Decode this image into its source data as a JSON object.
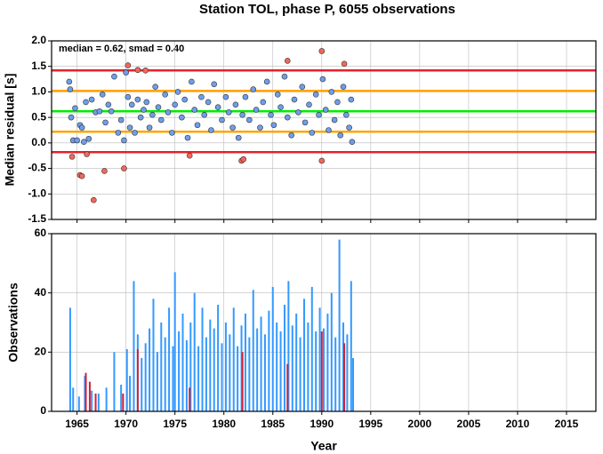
{
  "chart_data": [
    {
      "type": "scatter",
      "title": "Station TOL, phase P, 6055 observations",
      "ylabel": "Median residual [s]",
      "annotation": "median = 0.62, smad = 0.40",
      "xlim": [
        1962.4,
        2018
      ],
      "xticks": [
        1965,
        1970,
        1975,
        1980,
        1985,
        1990,
        1995,
        2000,
        2005,
        2010,
        2015
      ],
      "show_xtick_labels": false,
      "ylim": [
        -1.5,
        2.0
      ],
      "yticks": [
        {
          "value": 2,
          "label": "2.0"
        },
        1.5,
        {
          "value": 1,
          "label": "1.0"
        },
        0.5,
        {
          "value": 0,
          "label": "0.0"
        },
        -0.5,
        {
          "value": -1,
          "label": "-1.0"
        },
        -1.5
      ],
      "grid": true,
      "hlines": [
        {
          "value": 1.42,
          "color": "#e8202a"
        },
        {
          "value": 1.02,
          "color": "#ffa500"
        },
        {
          "value": 0.62,
          "color": "#00ee00"
        },
        {
          "value": 0.22,
          "color": "#ffa500"
        },
        {
          "value": -0.18,
          "color": "#e8202a"
        }
      ],
      "series": [
        {
          "color": "#6d9eeb",
          "x": [
            1964.2,
            1964.3,
            1964.4,
            1964.6,
            1964.8,
            1965.0,
            1965.3,
            1965.5,
            1965.7,
            1965.9,
            1966.2,
            1966.5,
            1966.9,
            1967.3,
            1967.6,
            1967.9,
            1968.2,
            1968.5,
            1968.8,
            1969.2,
            1969.5,
            1969.8,
            1970.0,
            1970.2,
            1970.4,
            1970.6,
            1970.9,
            1971.2,
            1971.5,
            1971.8,
            1972.1,
            1972.4,
            1972.7,
            1973.0,
            1973.3,
            1973.6,
            1974.0,
            1974.3,
            1974.7,
            1975.0,
            1975.3,
            1975.7,
            1976.0,
            1976.3,
            1976.7,
            1977.0,
            1977.3,
            1977.7,
            1978.0,
            1978.4,
            1978.7,
            1979.0,
            1979.4,
            1979.8,
            1980.2,
            1980.5,
            1980.9,
            1981.2,
            1981.5,
            1981.9,
            1982.2,
            1982.6,
            1983.0,
            1983.3,
            1983.7,
            1984.0,
            1984.4,
            1984.8,
            1985.1,
            1985.5,
            1985.8,
            1986.2,
            1986.5,
            1986.9,
            1987.2,
            1987.6,
            1988.0,
            1988.3,
            1988.7,
            1989.0,
            1989.4,
            1989.7,
            1990.1,
            1990.4,
            1990.7,
            1991.0,
            1991.3,
            1991.6,
            1991.9,
            1992.2,
            1992.5,
            1992.8,
            1993.0,
            1993.1
          ],
          "y": [
            1.2,
            1.05,
            0.5,
            0.05,
            0.68,
            0.05,
            0.35,
            0.3,
            0.02,
            0.8,
            0.08,
            0.85,
            0.6,
            0.62,
            0.95,
            0.4,
            0.75,
            0.62,
            1.3,
            0.2,
            0.45,
            0.05,
            1.38,
            0.9,
            0.3,
            0.75,
            0.2,
            0.85,
            0.5,
            0.65,
            0.8,
            0.3,
            0.55,
            1.1,
            0.7,
            0.45,
            0.95,
            0.6,
            0.2,
            0.75,
            1.0,
            0.5,
            0.85,
            0.1,
            1.2,
            0.65,
            0.35,
            0.9,
            0.55,
            0.8,
            0.25,
            1.15,
            0.7,
            0.45,
            0.9,
            0.6,
            0.3,
            0.75,
            0.1,
            0.55,
            0.9,
            0.45,
            1.05,
            0.65,
            0.3,
            0.8,
            1.2,
            0.55,
            0.35,
            0.95,
            0.7,
            1.3,
            0.5,
            0.15,
            0.85,
            0.6,
            1.1,
            0.4,
            0.75,
            0.2,
            0.95,
            0.55,
            1.25,
            0.65,
            0.25,
            1.0,
            0.45,
            0.8,
            0.15,
            1.1,
            0.55,
            0.3,
            0.85,
            0.02
          ]
        },
        {
          "color": "#f4665b",
          "x": [
            1964.5,
            1965.3,
            1965.5,
            1966.0,
            1966.7,
            1967.8,
            1969.8,
            1970.2,
            1971.2,
            1972.0,
            1976.5,
            1981.8,
            1982.0,
            1986.5,
            1990.0,
            1990.0,
            1992.3
          ],
          "y": [
            -0.27,
            -0.63,
            -0.65,
            -0.22,
            -1.12,
            -0.55,
            -0.5,
            1.52,
            1.43,
            1.42,
            -0.25,
            -0.35,
            -0.32,
            1.61,
            1.8,
            -0.35,
            1.55
          ]
        }
      ]
    },
    {
      "type": "bar",
      "xlabel": "Year",
      "ylabel": "Observations",
      "xlim": [
        1962.4,
        2018
      ],
      "xticks": [
        1965,
        1970,
        1975,
        1980,
        1985,
        1990,
        1995,
        2000,
        2005,
        2010,
        2015
      ],
      "show_xtick_labels": true,
      "ylim": [
        0,
        60
      ],
      "yticks": [
        0,
        20,
        40,
        60
      ],
      "grid": true,
      "series": [
        {
          "color": "#3399ff",
          "x": [
            1964.3,
            1964.6,
            1965.2,
            1965.8,
            1966.5,
            1967.2,
            1968.0,
            1968.8,
            1969.5,
            1970.1,
            1970.4,
            1970.8,
            1971.2,
            1971.6,
            1972.0,
            1972.4,
            1972.8,
            1973.2,
            1973.6,
            1974.0,
            1974.4,
            1974.8,
            1975.0,
            1975.4,
            1975.8,
            1976.2,
            1976.6,
            1977.0,
            1977.4,
            1977.8,
            1978.2,
            1978.6,
            1979.0,
            1979.4,
            1979.8,
            1980.2,
            1980.6,
            1981.0,
            1981.4,
            1981.8,
            1982.2,
            1982.6,
            1983.0,
            1983.4,
            1983.8,
            1984.2,
            1984.6,
            1985.0,
            1985.4,
            1985.8,
            1986.2,
            1986.6,
            1987.0,
            1987.4,
            1987.8,
            1988.2,
            1988.6,
            1989.0,
            1989.4,
            1989.8,
            1990.2,
            1990.6,
            1991.0,
            1991.4,
            1991.8,
            1992.2,
            1992.6,
            1993.0,
            1993.2
          ],
          "values": [
            35,
            8,
            5,
            12,
            7,
            6,
            8,
            20,
            9,
            21,
            12,
            44,
            26,
            18,
            23,
            28,
            38,
            20,
            30,
            25,
            35,
            22,
            47,
            27,
            33,
            24,
            30,
            40,
            22,
            35,
            25,
            31,
            28,
            36,
            23,
            30,
            26,
            35,
            22,
            29,
            33,
            25,
            41,
            28,
            32,
            26,
            34,
            42,
            30,
            27,
            36,
            44,
            29,
            33,
            25,
            38,
            30,
            42,
            27,
            35,
            28,
            33,
            40,
            25,
            58,
            30,
            26,
            44,
            18
          ]
        },
        {
          "color": "#d0203a",
          "x": [
            1965.9,
            1966.3,
            1966.9,
            1969.7,
            1971.2,
            1976.5,
            1981.9,
            1986.5,
            1990.0,
            1992.3
          ],
          "values": [
            13,
            10,
            6,
            6,
            21,
            8,
            20,
            16,
            27,
            23
          ]
        }
      ]
    }
  ]
}
